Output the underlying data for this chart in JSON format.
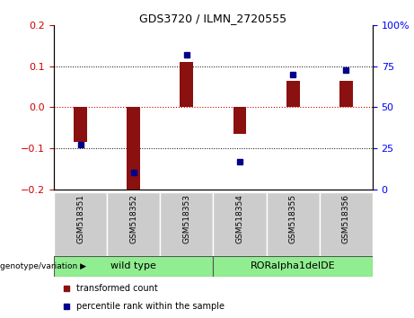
{
  "title": "GDS3720 / ILMN_2720555",
  "samples": [
    "GSM518351",
    "GSM518352",
    "GSM518353",
    "GSM518354",
    "GSM518355",
    "GSM518356"
  ],
  "red_bars": [
    -0.085,
    -0.2,
    0.11,
    -0.065,
    0.065,
    0.065
  ],
  "blue_squares_pct": [
    27,
    10,
    82,
    17,
    70,
    73
  ],
  "ylim_left": [
    -0.2,
    0.2
  ],
  "ylim_right": [
    0,
    100
  ],
  "yticks_left": [
    -0.2,
    -0.1,
    0,
    0.1,
    0.2
  ],
  "yticks_right": [
    0,
    25,
    50,
    75,
    100
  ],
  "ytick_labels_right": [
    "0",
    "25",
    "50",
    "75",
    "100%"
  ],
  "bar_color": "#8B1010",
  "square_color": "#00008B",
  "bar_width": 0.25,
  "zero_line_color": "#cc0000",
  "tick_bg": "#d3d3d3",
  "group_green": "#90ee90",
  "group_green_dark": "#50c850"
}
